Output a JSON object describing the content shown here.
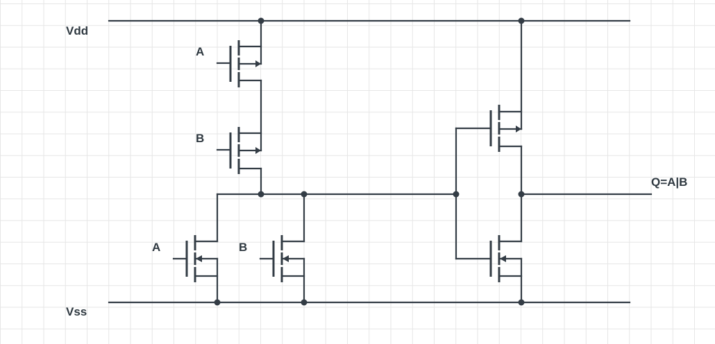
{
  "rails": {
    "vdd": "Vdd",
    "vss": "Vss"
  },
  "inputs": {
    "pmos_a": "A",
    "pmos_b": "B",
    "nmos_a": "A",
    "nmos_b": "B"
  },
  "output": "Q=A|B",
  "colors": {
    "wire": "#333c45",
    "grid": "#e6e6e6",
    "background": "#ffffff"
  }
}
